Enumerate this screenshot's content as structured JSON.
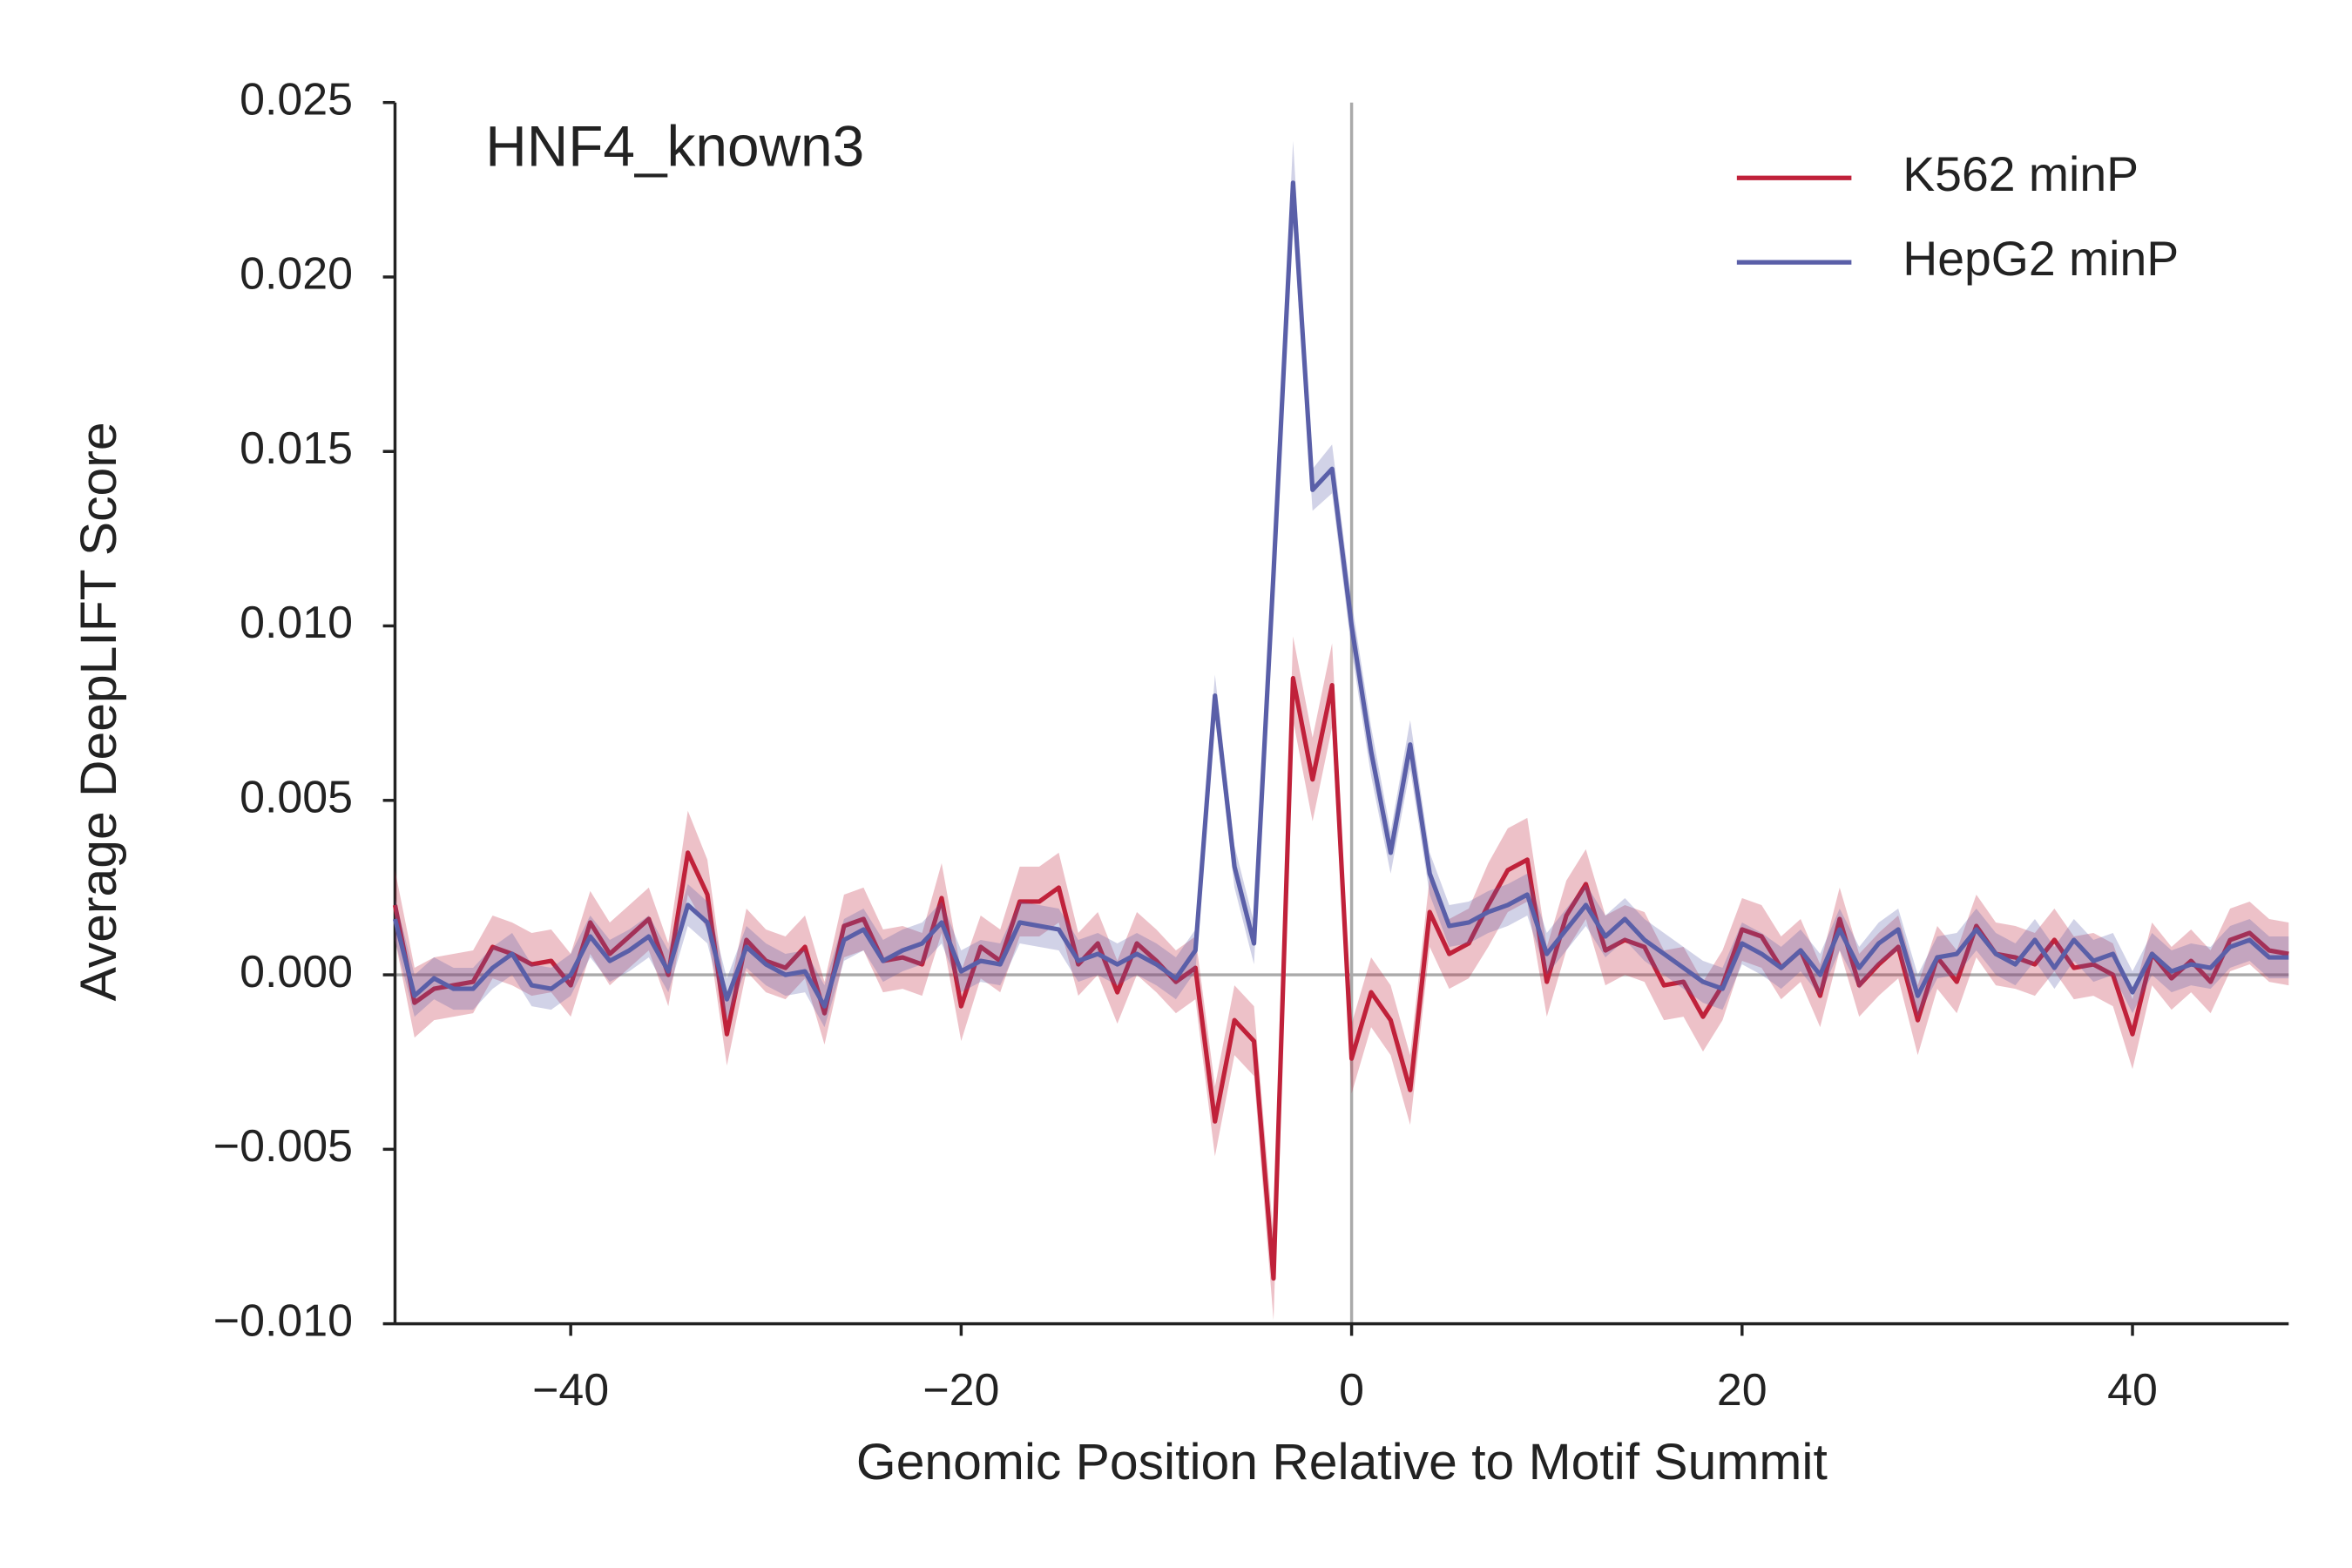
{
  "chart_data": {
    "type": "line",
    "title": "HNF4_known3",
    "x_label": "Genomic Position Relative to Motif Summit",
    "y_label": "Average DeepLIFT Score",
    "x": [
      -49,
      -48,
      -47,
      -46,
      -45,
      -44,
      -43,
      -42,
      -41,
      -40,
      -39,
      -38,
      -37,
      -36,
      -35,
      -34,
      -33,
      -32,
      -31,
      -30,
      -29,
      -28,
      -27,
      -26,
      -25,
      -24,
      -23,
      -22,
      -21,
      -20,
      -19,
      -18,
      -17,
      -16,
      -15,
      -14,
      -13,
      -12,
      -11,
      -10,
      -9,
      -8,
      -7,
      -6,
      -5,
      -4,
      -3,
      -2,
      -1,
      0,
      1,
      2,
      3,
      4,
      5,
      6,
      7,
      8,
      9,
      10,
      11,
      12,
      13,
      14,
      15,
      16,
      17,
      18,
      19,
      20,
      21,
      22,
      23,
      24,
      25,
      26,
      27,
      28,
      29,
      30,
      31,
      32,
      33,
      34,
      35,
      36,
      37,
      38,
      39,
      40,
      41,
      42,
      43,
      44,
      45,
      46,
      47,
      48
    ],
    "series": [
      {
        "name": "K562 minP",
        "color": "#c0213a",
        "values": [
          0.002,
          -0.0008,
          -0.0004,
          -0.0003,
          -0.0002,
          0.0008,
          0.0006,
          0.0003,
          0.0004,
          -0.0003,
          0.0015,
          0.0006,
          0.0011,
          0.0016,
          0.0,
          0.0035,
          0.0023,
          -0.0017,
          0.001,
          0.0004,
          0.0002,
          0.0008,
          -0.0011,
          0.0014,
          0.0016,
          0.0004,
          0.0005,
          0.0003,
          0.0022,
          -0.0009,
          0.0008,
          0.0004,
          0.0021,
          0.0021,
          0.0025,
          0.0003,
          0.0009,
          -0.0005,
          0.0009,
          0.0004,
          -0.0002,
          0.0002,
          -0.0042,
          -0.0013,
          -0.0019,
          -0.0087,
          0.0085,
          0.0056,
          0.0083,
          -0.0024,
          -0.0005,
          -0.0013,
          -0.0033,
          0.0018,
          0.0006,
          0.0009,
          0.002,
          0.003,
          0.0033,
          -0.0002,
          0.0017,
          0.0026,
          0.0007,
          0.001,
          0.0008,
          -0.0003,
          -0.0002,
          -0.0012,
          -0.0003,
          0.0013,
          0.0011,
          0.0002,
          0.0007,
          -0.0006,
          0.0016,
          -0.0003,
          0.0003,
          0.0008,
          -0.0013,
          0.0005,
          -0.0002,
          0.0014,
          0.0006,
          0.0005,
          0.0003,
          0.001,
          0.0002,
          0.0003,
          0.0,
          -0.0017,
          0.0006,
          -0.0001,
          0.0004,
          -0.0002,
          0.001,
          0.0012,
          0.0007,
          0.0006
        ],
        "error": [
          0.001,
          0.001,
          0.0009,
          0.0009,
          0.0009,
          0.0009,
          0.0009,
          0.0009,
          0.0009,
          0.0009,
          0.0009,
          0.0009,
          0.0009,
          0.0009,
          0.0009,
          0.0012,
          0.001,
          0.0009,
          0.0009,
          0.0009,
          0.0009,
          0.0009,
          0.0009,
          0.0009,
          0.0009,
          0.0009,
          0.0009,
          0.0009,
          0.001,
          0.001,
          0.0009,
          0.0009,
          0.001,
          0.001,
          0.001,
          0.0009,
          0.0009,
          0.0009,
          0.0009,
          0.0009,
          0.0009,
          0.0009,
          0.001,
          0.001,
          0.001,
          0.0012,
          0.0012,
          0.0012,
          0.0012,
          0.001,
          0.001,
          0.001,
          0.001,
          0.001,
          0.001,
          0.001,
          0.0012,
          0.0012,
          0.0012,
          0.001,
          0.001,
          0.001,
          0.001,
          0.001,
          0.001,
          0.001,
          0.001,
          0.001,
          0.001,
          0.0009,
          0.0009,
          0.0009,
          0.0009,
          0.0009,
          0.0009,
          0.0009,
          0.0009,
          0.0009,
          0.001,
          0.0009,
          0.0009,
          0.0009,
          0.0009,
          0.0009,
          0.0009,
          0.0009,
          0.0009,
          0.0009,
          0.0009,
          0.001,
          0.0009,
          0.0009,
          0.0009,
          0.0009,
          0.0009,
          0.0009,
          0.0009,
          0.0009
        ]
      },
      {
        "name": "HepG2 minP",
        "color": "#5a5fa8",
        "values": [
          0.0016,
          -0.0006,
          -0.0001,
          -0.0004,
          -0.0004,
          0.0002,
          0.0006,
          -0.0003,
          -0.0004,
          0.0,
          0.0011,
          0.0004,
          0.0007,
          0.0011,
          0.0001,
          0.002,
          0.0015,
          -0.0007,
          0.0008,
          0.0003,
          0.0,
          0.0001,
          -0.0009,
          0.001,
          0.0013,
          0.0004,
          0.0007,
          0.0009,
          0.0015,
          0.0001,
          0.0004,
          0.0003,
          0.0015,
          0.0014,
          0.0013,
          0.0004,
          0.0006,
          0.0003,
          0.0006,
          0.0003,
          -0.0001,
          0.0007,
          0.008,
          0.0031,
          0.0009,
          0.0115,
          0.0227,
          0.0139,
          0.0145,
          0.01,
          0.0064,
          0.0035,
          0.0066,
          0.0029,
          0.0014,
          0.0015,
          0.0018,
          0.002,
          0.0023,
          0.0006,
          0.0013,
          0.002,
          0.0011,
          0.0016,
          0.001,
          0.0006,
          0.0002,
          -0.0002,
          -0.0004,
          0.0009,
          0.0006,
          0.0002,
          0.0007,
          0.0,
          0.0013,
          0.0002,
          0.0009,
          0.0013,
          -0.0006,
          0.0005,
          0.0006,
          0.0013,
          0.0006,
          0.0003,
          0.001,
          0.0002,
          0.001,
          0.0004,
          0.0006,
          -0.0005,
          0.0006,
          0.0001,
          0.0003,
          0.0002,
          0.0008,
          0.001,
          0.0005,
          0.0005
        ],
        "error": [
          0.0006,
          0.0006,
          0.0006,
          0.0006,
          0.0006,
          0.0006,
          0.0006,
          0.0006,
          0.0006,
          0.0006,
          0.0006,
          0.0006,
          0.0006,
          0.0006,
          0.0006,
          0.0006,
          0.0006,
          0.0006,
          0.0006,
          0.0006,
          0.0006,
          0.0006,
          0.0006,
          0.0006,
          0.0006,
          0.0006,
          0.0006,
          0.0006,
          0.0006,
          0.0006,
          0.0006,
          0.0006,
          0.0006,
          0.0006,
          0.0006,
          0.0006,
          0.0006,
          0.0006,
          0.0006,
          0.0006,
          0.0006,
          0.0006,
          0.0006,
          0.0006,
          0.0006,
          0.0008,
          0.0012,
          0.0006,
          0.0007,
          0.0007,
          0.0007,
          0.0006,
          0.0007,
          0.0006,
          0.0006,
          0.0006,
          0.0006,
          0.0006,
          0.0006,
          0.0006,
          0.0006,
          0.0006,
          0.0006,
          0.0006,
          0.0006,
          0.0006,
          0.0006,
          0.0006,
          0.0006,
          0.0006,
          0.0006,
          0.0006,
          0.0006,
          0.0006,
          0.0006,
          0.0006,
          0.0006,
          0.0006,
          0.0006,
          0.0006,
          0.0006,
          0.0006,
          0.0006,
          0.0006,
          0.0006,
          0.0006,
          0.0006,
          0.0006,
          0.0006,
          0.0006,
          0.0006,
          0.0006,
          0.0006,
          0.0006,
          0.0006,
          0.0006,
          0.0006,
          0.0006
        ]
      }
    ],
    "xlim": [
      -49,
      48
    ],
    "ylim": [
      -0.01,
      0.025
    ],
    "xticks": [
      {
        "value": -40,
        "label": "−40"
      },
      {
        "value": -20,
        "label": "−20"
      },
      0,
      20,
      40
    ],
    "yticks": [
      {
        "value": -0.01,
        "label": "−0.010"
      },
      {
        "value": -0.005,
        "label": "−0.005"
      },
      {
        "value": 0,
        "label": "0.000"
      },
      0.005,
      {
        "value": 0.01,
        "label": "0.010"
      },
      0.015,
      {
        "value": 0.02,
        "label": "0.020"
      },
      0.025
    ],
    "hline": 0,
    "vline": 0,
    "legend": "upper right"
  }
}
